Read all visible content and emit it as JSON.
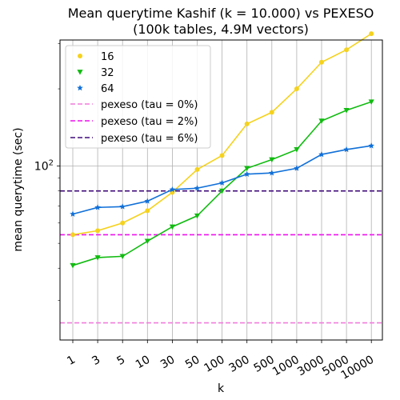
{
  "chart_data": {
    "type": "line",
    "title": "Mean querytime Kashif (k = 10.000) vs PEXESO",
    "subtitle": "(100k tables, 4.9M vectors)",
    "xlabel": "k",
    "ylabel": "mean querytime (sec)",
    "yscale": "log",
    "ylim": [
      21,
      310
    ],
    "y_ticks": [
      {
        "value": 100,
        "label": "10²"
      }
    ],
    "grid": true,
    "legend_position": "top-left",
    "categories": [
      "1",
      "3",
      "5",
      "10",
      "30",
      "50",
      "100",
      "300",
      "500",
      "1000",
      "3000",
      "5000",
      "10000"
    ],
    "series": [
      {
        "name": "16",
        "color": "#f5d21e",
        "marker": "circle",
        "values": [
          54,
          56,
          60,
          67,
          79,
          97,
          110,
          146,
          162,
          200,
          254,
          284,
          328
        ]
      },
      {
        "name": "32",
        "color": "#11bb11",
        "marker": "triangle-down",
        "values": [
          41,
          44,
          44.5,
          51,
          58,
          64,
          80,
          98,
          106,
          116,
          150,
          165,
          178
        ]
      },
      {
        "name": "64",
        "color": "#1170d8",
        "marker": "star",
        "values": [
          65,
          69,
          69.5,
          73,
          81,
          82,
          86,
          93,
          94,
          98,
          111,
          116,
          120
        ]
      }
    ],
    "reference_lines": [
      {
        "name": "pexeso (tau = 0%)",
        "color": "#f07cdc",
        "value": 24.5
      },
      {
        "name": "pexeso (tau = 2%)",
        "color": "#ee11ee",
        "value": 54
      },
      {
        "name": "pexeso (tau = 6%)",
        "color": "#3f0a7a",
        "value": 80
      }
    ]
  }
}
